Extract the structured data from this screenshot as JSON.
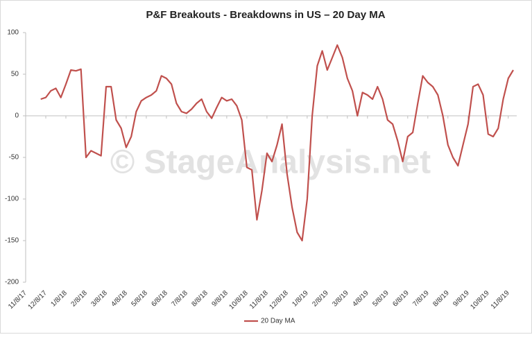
{
  "chart_data": {
    "type": "line",
    "title": "P&F Breakouts - Breakdowns in US – 20 Day MA",
    "watermark": "© StageAnalysis.net",
    "categories": [
      "11/8/17",
      null,
      null,
      null,
      "12/8/17",
      null,
      null,
      null,
      "1/8/18",
      null,
      null,
      null,
      "2/8/18",
      null,
      null,
      null,
      "3/8/18",
      null,
      null,
      null,
      "4/8/18",
      null,
      null,
      null,
      "5/8/18",
      null,
      null,
      null,
      "6/8/18",
      null,
      null,
      null,
      "7/8/18",
      null,
      null,
      null,
      "8/8/18",
      null,
      null,
      null,
      "9/8/18",
      null,
      null,
      null,
      "10/8/18",
      null,
      null,
      null,
      "11/8/18",
      null,
      null,
      null,
      "12/8/18",
      null,
      null,
      null,
      "1/8/19",
      null,
      null,
      null,
      "2/8/19",
      null,
      null,
      null,
      "3/8/19",
      null,
      null,
      null,
      "4/8/19",
      null,
      null,
      null,
      "5/8/19",
      null,
      null,
      null,
      "6/8/19",
      null,
      null,
      null,
      "7/8/19",
      null,
      null,
      null,
      "8/8/19",
      null,
      null,
      null,
      "9/8/19",
      null,
      null,
      null,
      "10/8/19",
      null,
      null,
      null,
      "11/8/19",
      null
    ],
    "series": [
      {
        "name": "20 Day MA",
        "color": "#c0504d",
        "values": [
          null,
          null,
          null,
          20,
          22,
          30,
          33,
          22,
          38,
          55,
          54,
          56,
          -50,
          -42,
          -45,
          -48,
          35,
          35,
          -5,
          -15,
          -38,
          -25,
          5,
          18,
          22,
          25,
          30,
          48,
          45,
          38,
          15,
          5,
          3,
          8,
          15,
          20,
          5,
          -3,
          10,
          22,
          18,
          20,
          12,
          -5,
          -62,
          -65,
          -125,
          -90,
          -45,
          -55,
          -35,
          -10,
          -70,
          -110,
          -140,
          -150,
          -100,
          0,
          60,
          78,
          55,
          70,
          85,
          70,
          45,
          30,
          0,
          28,
          25,
          20,
          35,
          20,
          -5,
          -10,
          -30,
          -55,
          -25,
          -20,
          15,
          48,
          40,
          35,
          25,
          0,
          -35,
          -50,
          -60,
          -35,
          -10,
          35,
          38,
          25,
          -22,
          -25,
          -15,
          20,
          45,
          55
        ]
      }
    ],
    "ylim": [
      -200,
      100
    ],
    "yticks": [
      -200,
      -150,
      -100,
      -50,
      0,
      50,
      100
    ]
  }
}
